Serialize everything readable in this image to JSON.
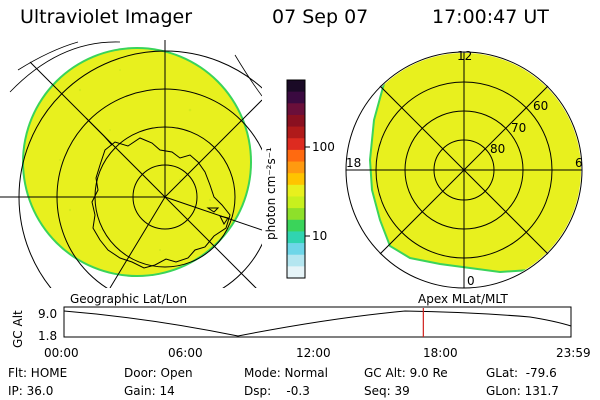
{
  "header": {
    "title": "Ultraviolet Imager",
    "date": "07 Sep 07",
    "time": "17:00:47 UT"
  },
  "colors": {
    "aurora": "#e8f01e",
    "ring": "#3ad45a",
    "needle": "#d0201c"
  },
  "colorbar": {
    "unit_label": "photon cm⁻²s⁻¹",
    "ticks": [
      "100",
      "10"
    ],
    "colors": [
      "#1a0a26",
      "#3a0a40",
      "#6a0f3a",
      "#8a1020",
      "#b01a1a",
      "#dd2b20",
      "#ff6a10",
      "#ff9a10",
      "#ffc400",
      "#e8f01e",
      "#c8f01e",
      "#8ee02a",
      "#3ad45a",
      "#30d4b0",
      "#6ed6e8",
      "#b4e6f0",
      "#e6f4f8"
    ]
  },
  "left_map": {
    "projection_label": "Geographic Lat/Lon"
  },
  "right_map": {
    "projection_label": "Apex MLat/MLT",
    "mlt_labels": [
      "12",
      "18",
      "6",
      "0"
    ],
    "mlat_labels": [
      "60",
      "70",
      "80"
    ]
  },
  "timeline": {
    "axis_label": "GC Alt",
    "y_ticks": [
      "9.0",
      "1.8"
    ],
    "x_ticks": [
      "00:00",
      "06:00",
      "12:00",
      "18:00",
      "23:59"
    ],
    "marker_time_hours": 17.01
  },
  "status": {
    "flt": "Flt: HOME",
    "ip": "IP: 36.0",
    "door": "Door: Open",
    "gain": "Gain: 14",
    "mode": "Mode: Normal",
    "dsp": "Dsp:    -0.3",
    "gc_alt": "GC Alt: 9.0 Re",
    "seq": "Seq: 39",
    "glat": "GLat:  -79.6",
    "glon": "GLon: 131.7"
  }
}
